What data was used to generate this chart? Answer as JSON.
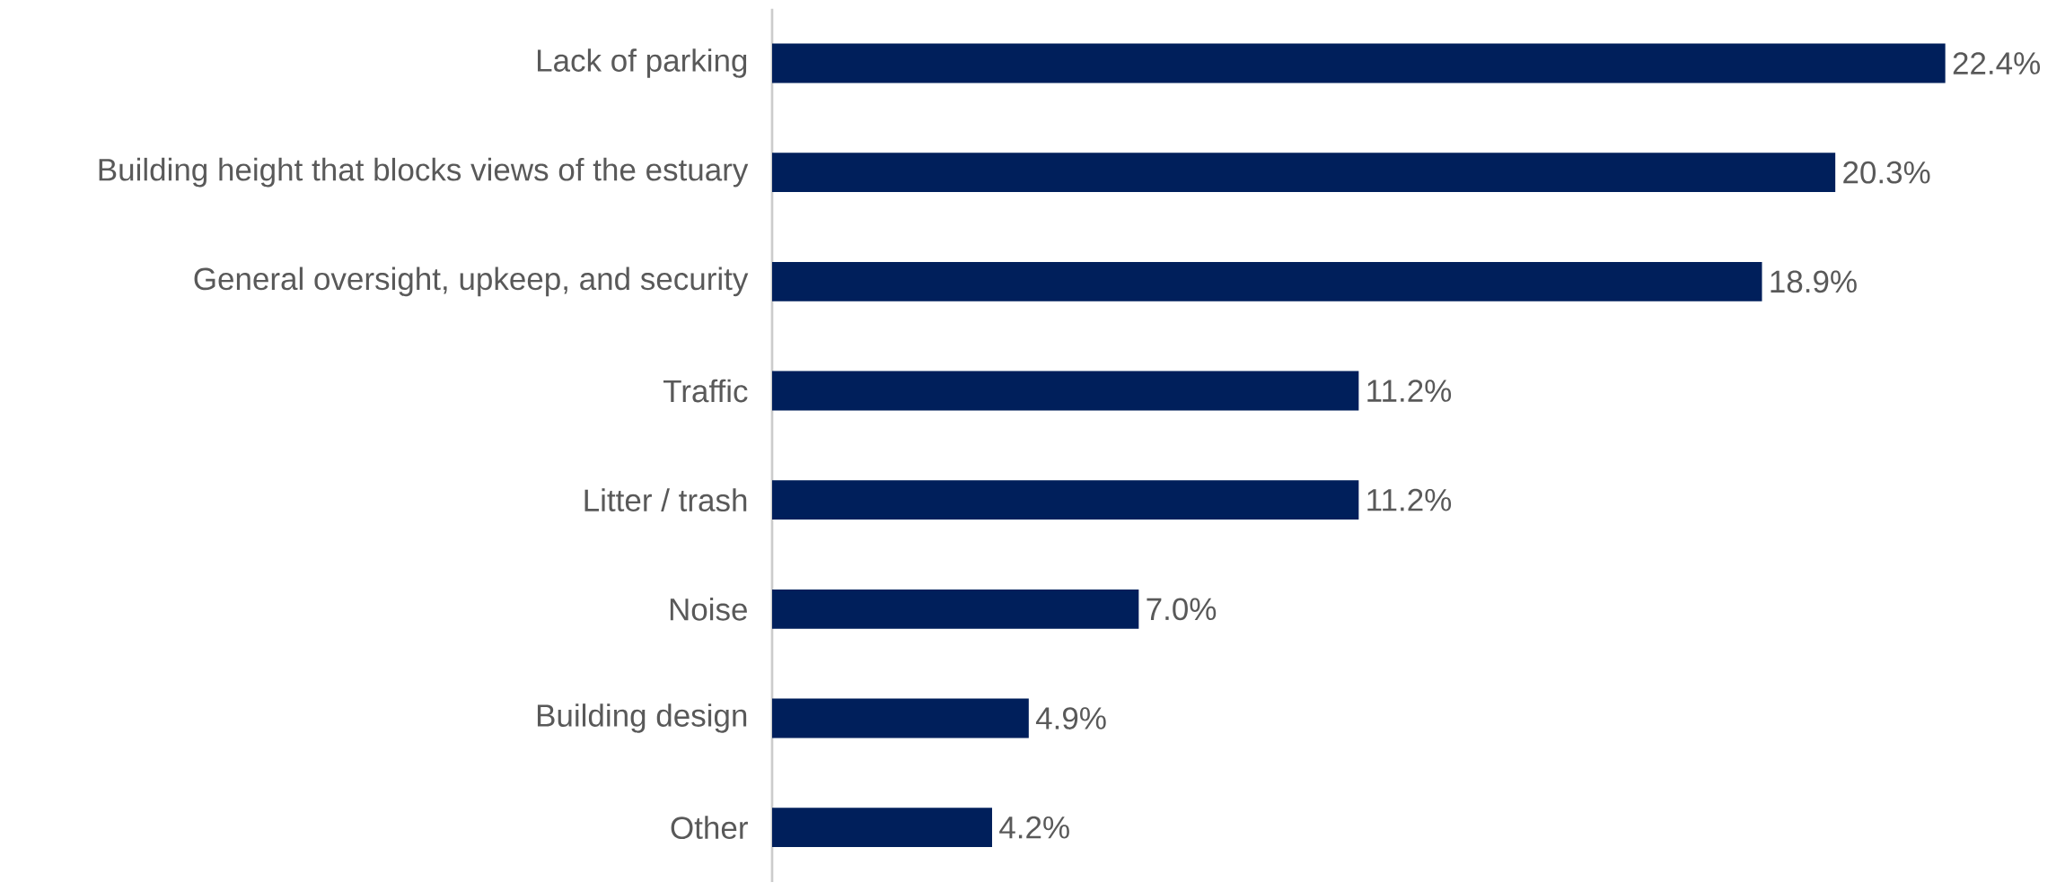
{
  "chart_data": {
    "type": "bar",
    "orientation": "horizontal",
    "categories": [
      "Lack of parking",
      "Building height that blocks views of the estuary",
      "General oversight, upkeep, and security",
      "Traffic",
      "Litter / trash",
      "Noise",
      "Building design",
      "Other"
    ],
    "values": [
      22.4,
      20.3,
      18.9,
      11.2,
      11.2,
      7.0,
      4.9,
      4.2
    ],
    "value_labels": [
      "22.4%",
      "20.3%",
      "18.9%",
      "11.2%",
      "11.2%",
      "7.0%",
      "4.9%",
      "4.2%"
    ],
    "color": "#001f5b",
    "tick_labels": "y"
  }
}
